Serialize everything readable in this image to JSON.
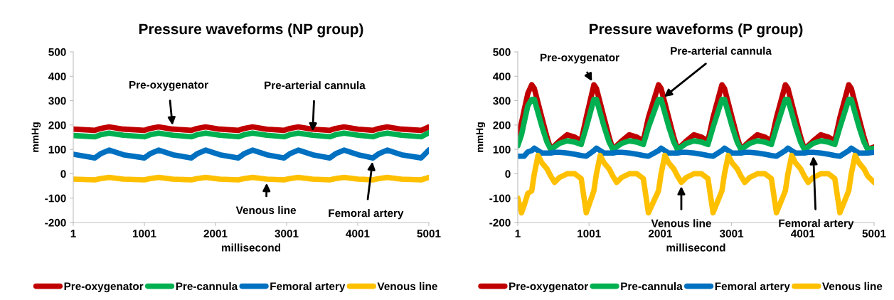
{
  "chart_data": [
    {
      "type": "line",
      "title": "Pressure waveforms (NP group)",
      "xlabel": "millisecond",
      "ylabel": "mmHg",
      "x": [
        1,
        305,
        385,
        505,
        705,
        1001,
        1081,
        1201,
        1401,
        1662,
        1742,
        1862,
        2062,
        2322,
        2402,
        2522,
        2722,
        2965,
        3045,
        3165,
        3365,
        3608,
        3688,
        3808,
        4008,
        4215,
        4295,
        4415,
        4615,
        4893,
        5001
      ],
      "series": [
        {
          "name": "Pre-oxygenator",
          "color": "#c00000",
          "values": [
            183,
            178,
            186,
            192,
            183,
            178,
            186,
            192,
            183,
            178,
            186,
            192,
            183,
            178,
            186,
            192,
            183,
            178,
            186,
            192,
            183,
            178,
            186,
            192,
            183,
            178,
            186,
            192,
            183,
            178,
            192
          ]
        },
        {
          "name": "Pre-cannula",
          "color": "#00b050",
          "values": [
            157,
            152,
            160,
            167,
            158,
            152,
            160,
            167,
            158,
            152,
            160,
            167,
            158,
            152,
            160,
            167,
            158,
            152,
            160,
            167,
            158,
            152,
            160,
            167,
            158,
            152,
            160,
            167,
            158,
            152,
            168
          ]
        },
        {
          "name": "Femoral artery",
          "color": "#0070c0",
          "values": [
            80,
            65,
            82,
            97,
            78,
            65,
            82,
            97,
            78,
            65,
            82,
            97,
            78,
            65,
            82,
            97,
            78,
            65,
            82,
            97,
            78,
            65,
            82,
            97,
            78,
            65,
            82,
            97,
            78,
            65,
            97
          ]
        },
        {
          "name": "Venous line",
          "color": "#ffc000",
          "values": [
            -22,
            -25,
            -20,
            -15,
            -22,
            -25,
            -20,
            -15,
            -22,
            -25,
            -20,
            -15,
            -22,
            -25,
            -20,
            -15,
            -22,
            -25,
            -20,
            -15,
            -22,
            -25,
            -20,
            -15,
            -22,
            -25,
            -20,
            -15,
            -22,
            -25,
            -15
          ]
        }
      ],
      "xlim": [
        1,
        5001
      ],
      "xticks": [
        1,
        1001,
        2001,
        3001,
        4001,
        5001
      ],
      "ylim": [
        -200,
        500
      ],
      "yticks": [
        -200,
        -100,
        0,
        100,
        200,
        300,
        400,
        500
      ],
      "grid": false,
      "legend": "bottom",
      "marker": "none",
      "line_style": "solid",
      "annotations": [
        {
          "text": "Pre-oxygenator",
          "x": 1401,
          "y": 183
        },
        {
          "text": "Pre-arterial cannula",
          "x": 3365,
          "y": 158
        },
        {
          "text": "Venous line",
          "x": 2722,
          "y": -22
        },
        {
          "text": "Femoral artery",
          "x": 4215,
          "y": 65
        }
      ]
    },
    {
      "type": "line",
      "title": "Pressure waveforms (P group)",
      "xlabel": "millisecond",
      "ylabel": "mmHg",
      "x": [
        1,
        54,
        90,
        143,
        197,
        233,
        286,
        339,
        411,
        464,
        517,
        588,
        695,
        802,
        891,
        962,
        1069,
        1105,
        1158,
        1211,
        1283,
        1336,
        1389,
        1460,
        1567,
        1674,
        1763,
        1834,
        1976,
        2012,
        2065,
        2118,
        2190,
        2243,
        2296,
        2367,
        2474,
        2581,
        2670,
        2741,
        2866,
        2902,
        2955,
        3008,
        3080,
        3133,
        3186,
        3257,
        3364,
        3471,
        3560,
        3631,
        3756,
        3792,
        3845,
        3898,
        3970,
        4023,
        4076,
        4147,
        4254,
        4361,
        4450,
        4521,
        4645,
        4681,
        4734,
        4787,
        4859,
        4912,
        5001
      ],
      "series": [
        {
          "name": "Pre-oxygenator",
          "color": "#c00000",
          "values": [
            150,
            210,
            260,
            330,
            365,
            350,
            290,
            230,
            150,
            100,
            115,
            135,
            160,
            150,
            135,
            230,
            365,
            350,
            290,
            230,
            150,
            100,
            115,
            135,
            160,
            150,
            135,
            230,
            365,
            350,
            290,
            230,
            150,
            100,
            115,
            135,
            160,
            150,
            135,
            230,
            365,
            350,
            290,
            230,
            150,
            100,
            115,
            135,
            160,
            150,
            135,
            230,
            365,
            350,
            290,
            230,
            150,
            100,
            115,
            135,
            160,
            150,
            135,
            230,
            365,
            350,
            290,
            230,
            150,
            100,
            110
          ]
        },
        {
          "name": "Pre-cannula",
          "color": "#00b050",
          "values": [
            115,
            160,
            210,
            280,
            305,
            305,
            250,
            195,
            130,
            100,
            110,
            125,
            135,
            130,
            120,
            190,
            305,
            305,
            250,
            195,
            130,
            100,
            110,
            125,
            135,
            130,
            120,
            190,
            305,
            305,
            250,
            195,
            130,
            100,
            110,
            125,
            135,
            130,
            120,
            190,
            305,
            305,
            250,
            195,
            130,
            100,
            110,
            125,
            135,
            130,
            120,
            190,
            305,
            305,
            250,
            195,
            130,
            100,
            110,
            125,
            135,
            130,
            120,
            190,
            305,
            305,
            250,
            195,
            130,
            100,
            105
          ]
        },
        {
          "name": "Femoral artery",
          "color": "#0070c0",
          "values": [
            72,
            72,
            72,
            90,
            95,
            105,
            95,
            85,
            85,
            85,
            88,
            88,
            85,
            80,
            75,
            72,
            95,
            105,
            95,
            85,
            85,
            85,
            88,
            88,
            85,
            80,
            75,
            72,
            95,
            105,
            95,
            85,
            85,
            85,
            88,
            88,
            85,
            80,
            75,
            72,
            95,
            105,
            95,
            85,
            85,
            85,
            88,
            88,
            85,
            80,
            75,
            72,
            95,
            105,
            95,
            85,
            85,
            85,
            88,
            88,
            85,
            80,
            75,
            72,
            95,
            105,
            95,
            85,
            85,
            85,
            88
          ]
        },
        {
          "name": "Venous line",
          "color": "#ffc000",
          "values": [
            -100,
            -160,
            -130,
            -80,
            -70,
            0,
            75,
            45,
            20,
            -10,
            -35,
            -15,
            0,
            0,
            -20,
            -160,
            -70,
            0,
            75,
            45,
            20,
            -10,
            -35,
            -15,
            0,
            0,
            -20,
            -160,
            -70,
            0,
            75,
            45,
            20,
            -10,
            -35,
            -15,
            0,
            0,
            -20,
            -160,
            -70,
            0,
            75,
            45,
            20,
            -10,
            -35,
            -15,
            0,
            0,
            -20,
            -160,
            -70,
            0,
            75,
            45,
            20,
            -10,
            -35,
            -15,
            0,
            0,
            -20,
            -160,
            -70,
            0,
            75,
            45,
            20,
            -10,
            -35
          ]
        }
      ],
      "xlim": [
        1,
        5001
      ],
      "xticks": [
        1,
        1001,
        2001,
        3001,
        4001,
        5001
      ],
      "ylim": [
        -200,
        500
      ],
      "yticks": [
        -200,
        -100,
        0,
        100,
        200,
        300,
        400,
        500
      ],
      "grid": false,
      "legend": "bottom",
      "marker": "none",
      "line_style": "solid",
      "annotations": [
        {
          "text": "Pre-oxygenator",
          "x": 1069,
          "y": 365
        },
        {
          "text": "Pre-arterial cannula",
          "x": 2012,
          "y": 305
        },
        {
          "text": "Venous line",
          "x": 2296,
          "y": -35
        },
        {
          "text": "Femoral artery",
          "x": 4147,
          "y": 88
        }
      ]
    }
  ]
}
